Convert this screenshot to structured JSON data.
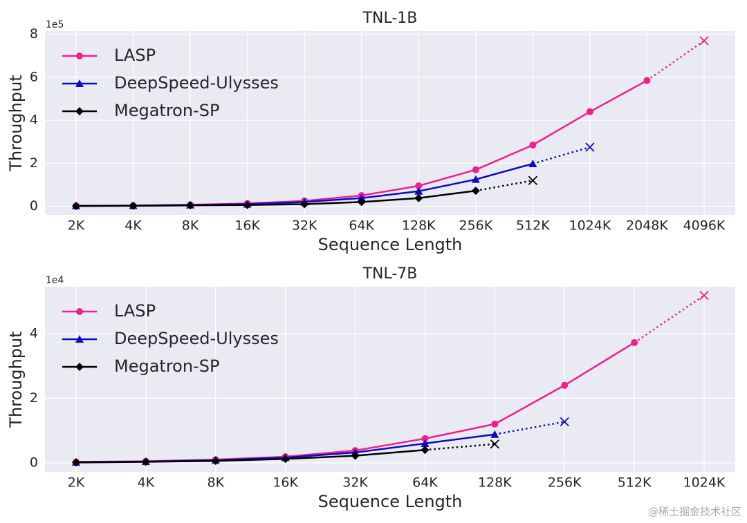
{
  "chart_data": [
    {
      "type": "line",
      "title": "TNL-1B",
      "offset_label": "1e5",
      "x_label": "Sequence Length",
      "y_label": "Throughput",
      "categories": [
        "2K",
        "4K",
        "8K",
        "16K",
        "32K",
        "64K",
        "128K",
        "256K",
        "512K",
        "1024K",
        "2048K",
        "4096K"
      ],
      "ylim": [
        -0.4,
        8.15
      ],
      "yticks": [
        0,
        2,
        4,
        6,
        8
      ],
      "grid": true,
      "legend": "upper left",
      "last_point_style": "x-dotted",
      "series": [
        {
          "name": "LASP",
          "color": "#f0208f",
          "marker": "circle",
          "values": [
            0.02,
            0.03,
            0.07,
            0.13,
            0.25,
            0.5,
            0.95,
            1.7,
            2.85,
            4.4,
            5.85,
            7.7
          ]
        },
        {
          "name": "DeepSpeed-Ulysses",
          "color": "#0a0ac8",
          "marker": "triangle",
          "values": [
            0.02,
            0.03,
            0.06,
            0.1,
            0.2,
            0.38,
            0.7,
            1.25,
            1.98,
            2.75,
            null,
            null
          ]
        },
        {
          "name": "Megatron-SP",
          "color": "#000000",
          "marker": "diamond",
          "values": [
            0.01,
            0.02,
            0.04,
            0.06,
            0.1,
            0.2,
            0.38,
            0.72,
            1.2,
            null,
            null,
            null
          ]
        }
      ]
    },
    {
      "type": "line",
      "title": "TNL-7B",
      "offset_label": "1e4",
      "x_label": "Sequence Length",
      "y_label": "Throughput",
      "categories": [
        "2K",
        "4K",
        "8K",
        "16K",
        "32K",
        "64K",
        "128K",
        "256K",
        "512K",
        "1024K"
      ],
      "ylim": [
        -0.28,
        5.45
      ],
      "yticks": [
        0,
        2,
        4
      ],
      "grid": true,
      "legend": "upper left",
      "last_point_style": "x-dotted",
      "series": [
        {
          "name": "LASP",
          "color": "#f0208f",
          "marker": "circle",
          "values": [
            0.03,
            0.05,
            0.1,
            0.19,
            0.38,
            0.75,
            1.2,
            2.4,
            3.72,
            5.18
          ]
        },
        {
          "name": "DeepSpeed-Ulysses",
          "color": "#0a0ac8",
          "marker": "triangle",
          "values": [
            0.02,
            0.04,
            0.08,
            0.16,
            0.32,
            0.6,
            0.88,
            1.27,
            null,
            null
          ]
        },
        {
          "name": "Megatron-SP",
          "color": "#000000",
          "marker": "diamond",
          "values": [
            0.01,
            0.03,
            0.06,
            0.12,
            0.22,
            0.4,
            0.58,
            null,
            null,
            null
          ]
        }
      ]
    }
  ],
  "watermark": "@稀土掘金技术社区"
}
